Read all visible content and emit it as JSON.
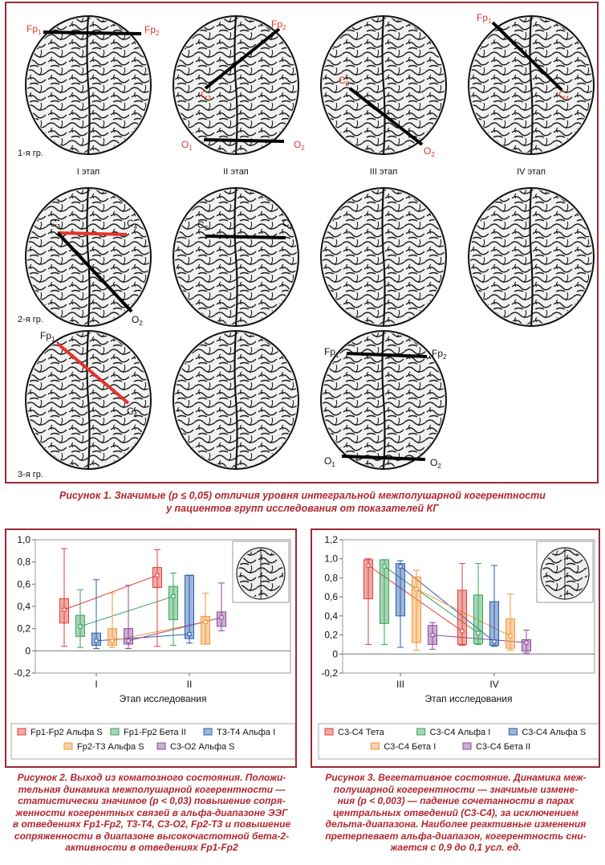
{
  "figure1": {
    "row_labels": [
      "1-я гр.",
      "2-я гр.",
      "3-я гр."
    ],
    "stage_labels": [
      "I этап",
      "II этап",
      "III этап",
      "IV этап"
    ],
    "electrodes": {
      "fp1": "Fp",
      "fp1_sub": "1",
      "fp2": "Fp",
      "fp2_sub": "2",
      "c3": "C",
      "c3_sub": "3",
      "c4": "C",
      "c4_sub": "4",
      "o1": "O",
      "o1_sub": "1",
      "o2": "O",
      "o2_sub": "2"
    },
    "caption_line1": "Рисунок 1.  Значимые (p ≤ 0,05) отличия уровня интегральной межполушарной когерентности",
    "caption_line2": "у пациентов групп исследования от показателей КГ"
  },
  "figure2": {
    "caption_parts": [
      "Рисунок 2. Выход из коматозного состояния. Положи-",
      "тельная динамика межполушарной когерентности —",
      "статистически значимое (p < 0,03) повышение сопря-",
      "женности когерентных связей в альфа-диапазоне ЭЭГ",
      "в отведениях Fp1-Fp2, T3-T4, C3-O2, Fp2-T3 и повышение",
      "сопряженности в диапазоне высокочастотной бета-2-",
      "активности в отведениях Fp1-Fp2"
    ],
    "chart_data": {
      "type": "box",
      "categories": [
        "I",
        "II"
      ],
      "xlabel": "Этап исследования",
      "ylim": [
        -0.2,
        1.0
      ],
      "yticks": [
        "-0,2",
        "0",
        "0,2",
        "0,4",
        "0,6",
        "0,8",
        "1,0"
      ],
      "series": [
        {
          "name": "Fp1-Fp2 Альфа S",
          "color": "#e0413a",
          "stages": [
            {
              "min": 0.04,
              "q1": 0.25,
              "median": 0.37,
              "q3": 0.47,
              "max": 0.92
            },
            {
              "min": 0.04,
              "q1": 0.57,
              "median": 0.68,
              "q3": 0.75,
              "max": 0.91
            }
          ]
        },
        {
          "name": "Fp1-Fp2 Бета II",
          "color": "#3aa35a",
          "stages": [
            {
              "min": 0.03,
              "q1": 0.13,
              "median": 0.22,
              "q3": 0.32,
              "max": 0.55
            },
            {
              "min": 0.05,
              "q1": 0.28,
              "median": 0.49,
              "q3": 0.58,
              "max": 0.7
            }
          ]
        },
        {
          "name": "T3-T4 Альфа I",
          "color": "#2a5db0",
          "stages": [
            {
              "min": 0.02,
              "q1": 0.05,
              "median": 0.09,
              "q3": 0.16,
              "max": 0.64
            },
            {
              "min": 0.07,
              "q1": 0.11,
              "median": 0.15,
              "q3": 0.68,
              "max": 0.68
            }
          ]
        },
        {
          "name": "Fp2-T3 Альфа S",
          "color": "#f09a3a",
          "stages": [
            {
              "min": 0.03,
              "q1": 0.05,
              "median": 0.09,
              "q3": 0.2,
              "max": 0.52
            },
            {
              "min": 0.06,
              "q1": 0.06,
              "median": 0.26,
              "q3": 0.31,
              "max": 0.52
            }
          ]
        },
        {
          "name": "C3-O2 Альфа S",
          "color": "#8e4a9c",
          "stages": [
            {
              "min": 0.02,
              "q1": 0.06,
              "median": 0.09,
              "q3": 0.2,
              "max": 0.59
            },
            {
              "min": 0.18,
              "q1": 0.22,
              "median": 0.3,
              "q3": 0.35,
              "max": 0.61
            }
          ]
        }
      ],
      "legend": {
        "placement": "bottom"
      }
    }
  },
  "figure3": {
    "caption_parts": [
      "Рисунок 3. Вегетативное состояние. Динамика меж-",
      "полушарной когерентности — значимые измене-",
      "ния (p < 0,003) — падение сочетанности в парах",
      "центральных отведений (C3-C4), за исключением",
      "дельта-диапазона. Наиболее реактивные изменения",
      "претерпевает альфа-диапазон, когерентность сни-",
      "жается с 0,9 до 0,1 усл. ед."
    ],
    "chart_data": {
      "type": "box",
      "categories": [
        "III",
        "IV"
      ],
      "xlabel": "Этап исследования",
      "ylim": [
        -0.2,
        1.2
      ],
      "yticks": [
        "-0,2",
        "0",
        "0,2",
        "0,4",
        "0,6",
        "0,8",
        "1,0",
        "1,2"
      ],
      "series": [
        {
          "name": "C3-C4 Тета",
          "color": "#e0413a",
          "stages": [
            {
              "min": 0.1,
              "q1": 0.58,
              "median": 0.93,
              "q3": 0.99,
              "max": 1.0
            },
            {
              "min": 0.09,
              "q1": 0.1,
              "median": 0.24,
              "q3": 0.67,
              "max": 0.95
            }
          ]
        },
        {
          "name": "C3-C4 Альфа I",
          "color": "#3aa35a",
          "stages": [
            {
              "min": 0.1,
              "q1": 0.32,
              "median": 0.92,
              "q3": 0.99,
              "max": 0.99
            },
            {
              "min": 0.1,
              "q1": 0.11,
              "median": 0.22,
              "q3": 0.62,
              "max": 0.95
            }
          ]
        },
        {
          "name": "C3-C4 Альфа S",
          "color": "#2a5db0",
          "stages": [
            {
              "min": 0.07,
              "q1": 0.4,
              "median": 0.92,
              "q3": 0.95,
              "max": 0.98
            },
            {
              "min": 0.08,
              "q1": 0.09,
              "median": 0.13,
              "q3": 0.55,
              "max": 0.93
            }
          ]
        },
        {
          "name": "C3-C4 Бета I",
          "color": "#f09a3a",
          "stages": [
            {
              "min": 0.04,
              "q1": 0.12,
              "median": 0.68,
              "q3": 0.81,
              "max": 0.88
            },
            {
              "min": 0.04,
              "q1": 0.06,
              "median": 0.19,
              "q3": 0.37,
              "max": 0.63
            }
          ]
        },
        {
          "name": "C3-C4 Бета II",
          "color": "#8e4a9c",
          "stages": [
            {
              "min": 0.05,
              "q1": 0.1,
              "median": 0.2,
              "q3": 0.3,
              "max": 0.33
            },
            {
              "min": 0.01,
              "q1": 0.03,
              "median": 0.12,
              "q3": 0.15,
              "max": 0.25
            }
          ]
        }
      ],
      "legend": {
        "placement": "bottom"
      }
    }
  }
}
